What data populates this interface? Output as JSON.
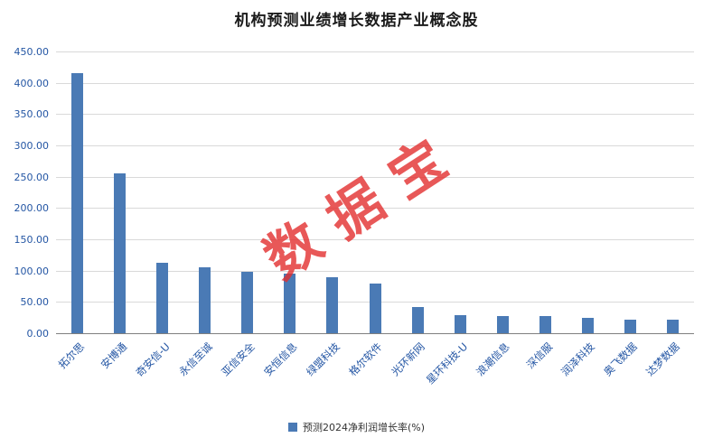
{
  "title": "机构预测业绩增长数据产业概念股",
  "watermark": "数据宝",
  "legend": {
    "label": "预测2024净利润增长率(%)"
  },
  "colors": {
    "bar": "#4a7ab5",
    "axis_label": "#2456a4",
    "grid": "#d9d9d9",
    "axis_line": "#808080",
    "watermark": "#e32f2f",
    "title": "#1a1a1a"
  },
  "chart_data": {
    "type": "bar",
    "title": "机构预测业绩增长数据产业概念股",
    "categories": [
      "拓尔思",
      "安博通",
      "奇安信-U",
      "永信至诚",
      "亚信安全",
      "安恒信息",
      "绿盟科技",
      "格尔软件",
      "光环新网",
      "星环科技-U",
      "浪潮信息",
      "深信服",
      "润泽科技",
      "奥飞数据",
      "达梦数据"
    ],
    "values": [
      415,
      255,
      113,
      105,
      98,
      95,
      90,
      79,
      42,
      29,
      28,
      27,
      25,
      22,
      21
    ],
    "series_name": "预测2024净利润增长率(%)",
    "xlabel": "",
    "ylabel": "",
    "ylim": [
      0,
      450
    ],
    "ytick_step": 50,
    "ytick_format_decimals": 2,
    "grid": true,
    "legend_position": "bottom"
  }
}
